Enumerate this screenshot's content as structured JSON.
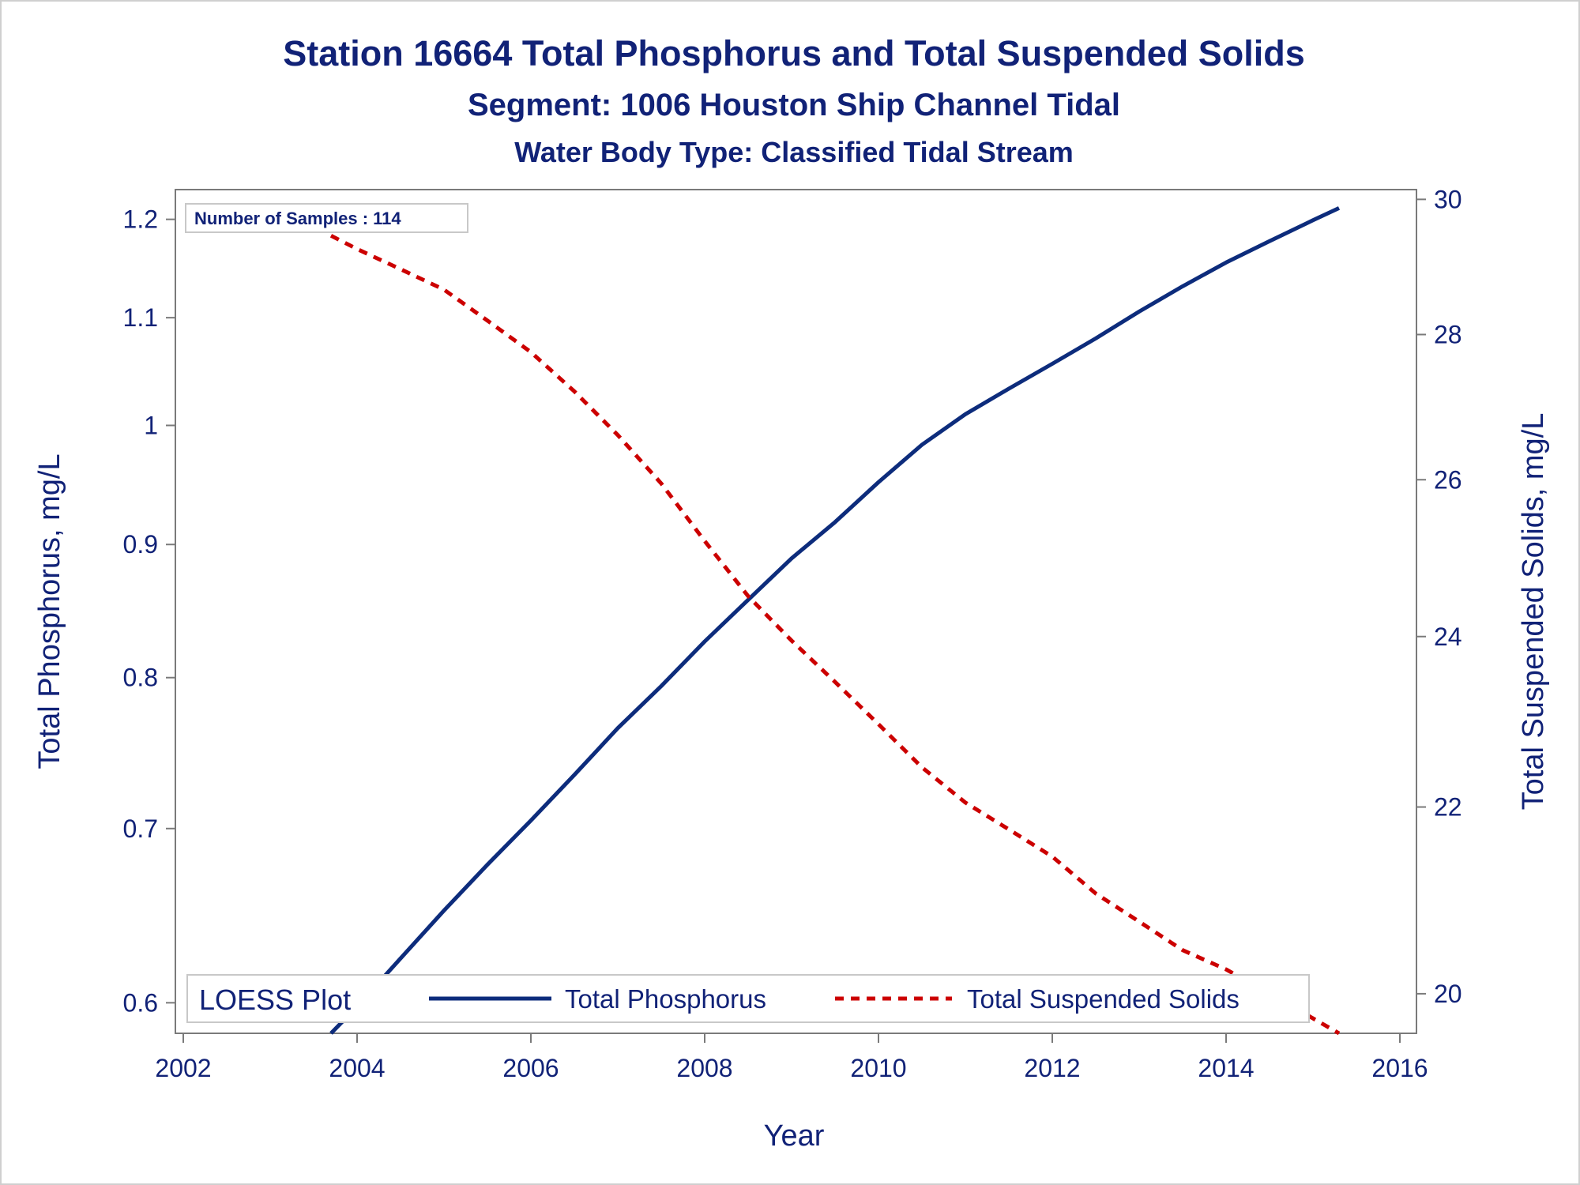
{
  "chart_data": {
    "type": "line",
    "title": "Station 16664  Total Phosphorus and Total Suspended Solids",
    "subtitle": "Segment: 1006  Houston Ship Channel Tidal",
    "subtitle2": "Water Body Type: Classified Tidal Stream",
    "xlabel": "Year",
    "ylabel": "Total Phosphorus, mg/L",
    "y2label": "Total Suspended Solids, mg/L",
    "xlim": [
      2002,
      2016
    ],
    "xticks": [
      2002,
      2004,
      2006,
      2008,
      2010,
      2012,
      2014,
      2016
    ],
    "ylim": [
      0.584,
      1.232
    ],
    "yscale": "log",
    "yticks": [
      0.6,
      0.7,
      0.8,
      0.9,
      1,
      1.1,
      1.2
    ],
    "ytick_labels": [
      "0.6",
      "0.7",
      "0.8",
      "0.9",
      "1",
      "1.1",
      "1.2"
    ],
    "y2lim": [
      19.6,
      30.15
    ],
    "y2scale": "log",
    "y2ticks": [
      20,
      22,
      24,
      26,
      28,
      30
    ],
    "inset_label": "Number of Samples : 114",
    "legend": {
      "title": "LOESS Plot",
      "position": "bottom",
      "entries": [
        "Total Phosphorus",
        "Total Suspended Solids"
      ]
    },
    "series": [
      {
        "name": "Total Phosphorus",
        "axis": "left",
        "color": "#0d2c7c",
        "style": "solid",
        "x": [
          2003.7,
          2004.0,
          2004.5,
          2005.0,
          2005.5,
          2006.0,
          2006.5,
          2007.0,
          2007.5,
          2008.0,
          2008.5,
          2009.0,
          2009.5,
          2010.0,
          2010.5,
          2011.0,
          2011.5,
          2012.0,
          2012.5,
          2013.0,
          2013.5,
          2014.0,
          2014.5,
          2015.0,
          2015.3
        ],
        "y": [
          0.584,
          0.598,
          0.624,
          0.651,
          0.678,
          0.705,
          0.734,
          0.765,
          0.794,
          0.826,
          0.857,
          0.889,
          0.918,
          0.951,
          0.983,
          1.01,
          1.033,
          1.056,
          1.08,
          1.106,
          1.131,
          1.155,
          1.177,
          1.199,
          1.212
        ]
      },
      {
        "name": "Total Suspended Solids",
        "axis": "right",
        "color": "#cc0000",
        "style": "dashed",
        "x": [
          2003.7,
          2004.0,
          2004.5,
          2005.0,
          2005.5,
          2006.0,
          2006.5,
          2007.0,
          2007.5,
          2008.0,
          2008.5,
          2009.0,
          2009.5,
          2010.0,
          2010.5,
          2011.0,
          2011.5,
          2012.0,
          2012.5,
          2013.0,
          2013.5,
          2014.0,
          2014.5,
          2015.0,
          2015.3
        ],
        "y": [
          29.45,
          29.25,
          28.95,
          28.65,
          28.2,
          27.75,
          27.2,
          26.6,
          25.95,
          25.2,
          24.5,
          23.95,
          23.45,
          22.95,
          22.45,
          22.05,
          21.75,
          21.45,
          21.05,
          20.75,
          20.45,
          20.25,
          20.0,
          19.75,
          19.6
        ]
      }
    ]
  }
}
